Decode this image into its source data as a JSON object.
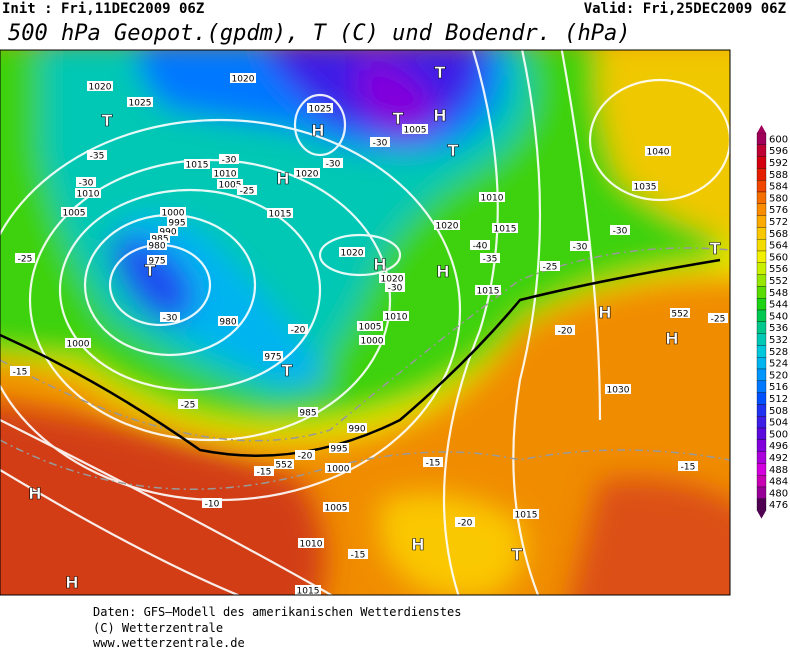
{
  "header": {
    "init": "Init : Fri,11DEC2009 06Z",
    "valid": "Valid: Fri,25DEC2009 06Z",
    "title": "500 hPa Geopot.(gpdm), T (C) und Bodendr. (hPa)"
  },
  "map": {
    "labels": [
      "1020",
      "1025",
      "1020",
      "1025",
      "T",
      "H",
      "T",
      "T",
      "H",
      "1005",
      "-30",
      "T",
      "-35",
      "1015",
      "-30",
      "1010",
      "1005",
      "-25",
      "1020",
      "H",
      "-30",
      "-30",
      "1010",
      "1005",
      "1000",
      "995",
      "990",
      "985",
      "980",
      "975",
      "T",
      "1015",
      "1020",
      "H",
      "1020",
      "-30",
      "1020",
      "1010",
      "1015",
      "-40",
      "-35",
      "H",
      "1015",
      "-25",
      "-30",
      "-30",
      "1040",
      "1035",
      "T",
      "-25",
      "-30",
      "980",
      "-20",
      "1005",
      "1010",
      "1000",
      "1000",
      "975",
      "T",
      "-15",
      "-20",
      "H",
      "H",
      "552",
      "-25",
      "1030",
      "-25",
      "985",
      "990",
      "995",
      "-20",
      "1000",
      "-15",
      "552",
      "-15",
      "-15",
      "H",
      "-10",
      "1005",
      "-20",
      "1015",
      "H",
      "T",
      "1010",
      "-15",
      "H",
      "1015"
    ]
  },
  "colorbar": {
    "labels": [
      600,
      596,
      592,
      588,
      584,
      580,
      576,
      572,
      568,
      564,
      560,
      556,
      552,
      548,
      544,
      540,
      536,
      532,
      528,
      524,
      520,
      516,
      512,
      508,
      504,
      500,
      496,
      492,
      488,
      484,
      480,
      476
    ],
    "colors": [
      "#a0005a",
      "#be0032",
      "#d2000f",
      "#e61e00",
      "#f04600",
      "#f56e00",
      "#fa8c00",
      "#faaa00",
      "#fac800",
      "#f5dc00",
      "#f0f000",
      "#c8f000",
      "#96e600",
      "#5adc00",
      "#1ed214",
      "#00c850",
      "#00c88c",
      "#00c8b4",
      "#00c8dc",
      "#00b4f0",
      "#0096ff",
      "#0078ff",
      "#0050ff",
      "#1e32f0",
      "#3c1ee6",
      "#5a0adc",
      "#8200dc",
      "#aa00dc",
      "#d200dc",
      "#c800b4",
      "#960096",
      "#500050"
    ]
  },
  "footer": {
    "lines": [
      "Daten: GFS—Modell des amerikanischen Wetterdienstes",
      "(C) Wetterzentrale",
      "www.wetterzentrale.de"
    ]
  }
}
